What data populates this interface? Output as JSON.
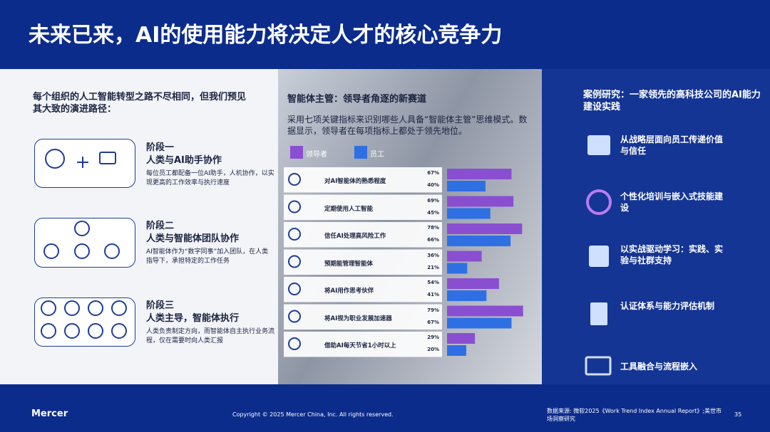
{
  "title": "未来已来，AI的使用能力将决定人才的核心竞争力",
  "left": {
    "heading": "每个组织的人工智能转型之路不尽相同，但我们预见其大致的演进路径：",
    "stages": [
      {
        "label": "阶段一",
        "title": "人类与AI助手协作",
        "desc": "每位员工都配备一位AI助手，人机协作，以实现更高的工作效率与执行速度"
      },
      {
        "label": "阶段二",
        "title": "人类与智能体团队协作",
        "desc": "AI智能体作为“数字同事”加入团队，在人类指导下，承担特定的工作任务"
      },
      {
        "label": "阶段三",
        "title": "人类主导，智能体执行",
        "desc": "人类负责制定方向，而智能体自主执行业务流程，仅在需要时向人类汇报"
      }
    ]
  },
  "chart_data": {
    "type": "bar",
    "title": "智能体主管：领导者角逐的新赛道",
    "subtitle": "采用七项关键指标来识别哪些人具备“智能体主管”思维模式。数据显示，领导者在每项指标上都处于领先地位。",
    "categories": [
      "对AI智能体的熟悉程度",
      "定期使用人工智能",
      "信任AI处理高风险工作",
      "预期能管理智能体",
      "将AI用作思考伙伴",
      "将AI视为职业发展加速器",
      "借助AI每天节省1小时以上"
    ],
    "series": [
      {
        "name": "领导者",
        "color": "#8a4fd0",
        "values": [
          67,
          69,
          78,
          36,
          54,
          79,
          29
        ],
        "value_labels": [
          "67%",
          "69%",
          "78%",
          "36%",
          "54%",
          "79%",
          "29%"
        ]
      },
      {
        "name": "员工",
        "color": "#2f6fe4",
        "values": [
          40,
          45,
          66,
          21,
          41,
          67,
          20
        ],
        "value_labels": [
          "40%",
          "45%",
          "66%",
          "21%",
          "41%",
          "67%",
          "20%"
        ]
      }
    ]
  },
  "right": {
    "heading": "案例研究：一家领先的高科技公司的AI能力建设实践",
    "items": [
      "从战略层面向员工传递价值与信任",
      "个性化培训与嵌入式技能建设",
      "以实战驱动学习：实践、实验与社群支持",
      "认证体系与能力评估机制",
      "工具融合与流程嵌入"
    ]
  },
  "footer": {
    "brand": "Mercer",
    "copyright": "Copyright © 2025 Mercer China, Inc. All rights reserved.",
    "source": "数据来源: 微软2025《Work Trend Index Annual Report》;美世市场洞察研究",
    "page": "35"
  }
}
